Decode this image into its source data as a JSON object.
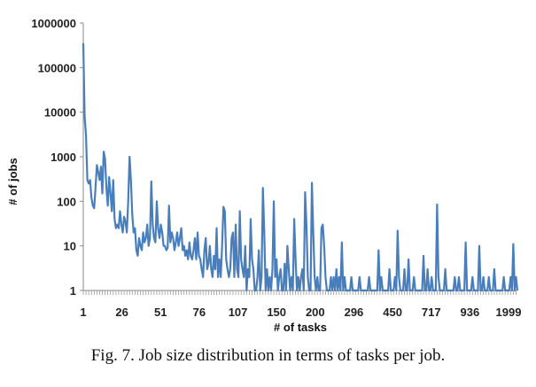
{
  "caption": "Fig. 7.   Job size distribution in terms of tasks per job.",
  "chart_data": {
    "type": "line",
    "title": "",
    "xlabel": "# of tasks",
    "ylabel": "# of jobs",
    "y_scale": "log",
    "ylim": [
      1,
      1000000
    ],
    "y_ticks": [
      "1",
      "10",
      "100",
      "1000",
      "10000",
      "100000",
      "1000000"
    ],
    "x_tick_labels": [
      "1",
      "26",
      "51",
      "76",
      "107",
      "150",
      "200",
      "296",
      "450",
      "717",
      "936",
      "1999"
    ],
    "color": "#4a7ebb",
    "grid": false,
    "legend": "none",
    "series": [
      {
        "values": [
          350000,
          8000,
          3000,
          300,
          250,
          300,
          120,
          80,
          70,
          200,
          650,
          450,
          300,
          600,
          150,
          1300,
          900,
          200,
          80,
          350,
          150,
          60,
          300,
          40,
          25,
          30,
          25,
          60,
          30,
          20,
          45,
          35,
          20,
          100,
          1000,
          300,
          50,
          20,
          25,
          8,
          6,
          15,
          10,
          8,
          20,
          12,
          15,
          30,
          10,
          15,
          280,
          30,
          15,
          12,
          100,
          25,
          15,
          30,
          20,
          10,
          10,
          8,
          9,
          80,
          12,
          20,
          15,
          8,
          12,
          20,
          10,
          15,
          25,
          8,
          10,
          6,
          8,
          5,
          12,
          6,
          5,
          8,
          15,
          5,
          20,
          6,
          5,
          3,
          2,
          8,
          15,
          3,
          4,
          10,
          3,
          2,
          6,
          3,
          25,
          2,
          5,
          2,
          10,
          75,
          60,
          5,
          3,
          2,
          3,
          15,
          20,
          2,
          30,
          3,
          2,
          60,
          5,
          3,
          2,
          10,
          1,
          3,
          2,
          40,
          5,
          3,
          1,
          1,
          2,
          8,
          1,
          2,
          200,
          20,
          1,
          3,
          1,
          2,
          1,
          3,
          100,
          2,
          5,
          1,
          2,
          3,
          1,
          1,
          4,
          1,
          10,
          3,
          1,
          2,
          1,
          40,
          5,
          1,
          2,
          1,
          2,
          3,
          1,
          160,
          30,
          2,
          1,
          1,
          260,
          20,
          2,
          1,
          2,
          1,
          1,
          25,
          30,
          10,
          2,
          1,
          1,
          1,
          2,
          1,
          2,
          1,
          3,
          1,
          2,
          1,
          12,
          1,
          2,
          1,
          1,
          1,
          1,
          2,
          1,
          1,
          1,
          1,
          1,
          2,
          1,
          1,
          1,
          1,
          1,
          1,
          2,
          1,
          1,
          1,
          1,
          1,
          1,
          8,
          1,
          2,
          1,
          1,
          1,
          1,
          1,
          3,
          1,
          1,
          1,
          2,
          1,
          22,
          2,
          1,
          1,
          1,
          3,
          1,
          1,
          5,
          1,
          1,
          1,
          2,
          1,
          1,
          1,
          1,
          1,
          1,
          6,
          1,
          1,
          3,
          1,
          1,
          2,
          1,
          1,
          1,
          85,
          2,
          1,
          1,
          1,
          1,
          3,
          1,
          1,
          1,
          1,
          1,
          1,
          2,
          1,
          1,
          2,
          1,
          1,
          1,
          1,
          12,
          1,
          1,
          1,
          1,
          2,
          1,
          1,
          1,
          1,
          10,
          1,
          1,
          2,
          1,
          1,
          1,
          2,
          1,
          1,
          1,
          3,
          1,
          1,
          1,
          1,
          1,
          1,
          2,
          1,
          1,
          1,
          1,
          2,
          1,
          11,
          1,
          2,
          1
        ]
      }
    ]
  }
}
